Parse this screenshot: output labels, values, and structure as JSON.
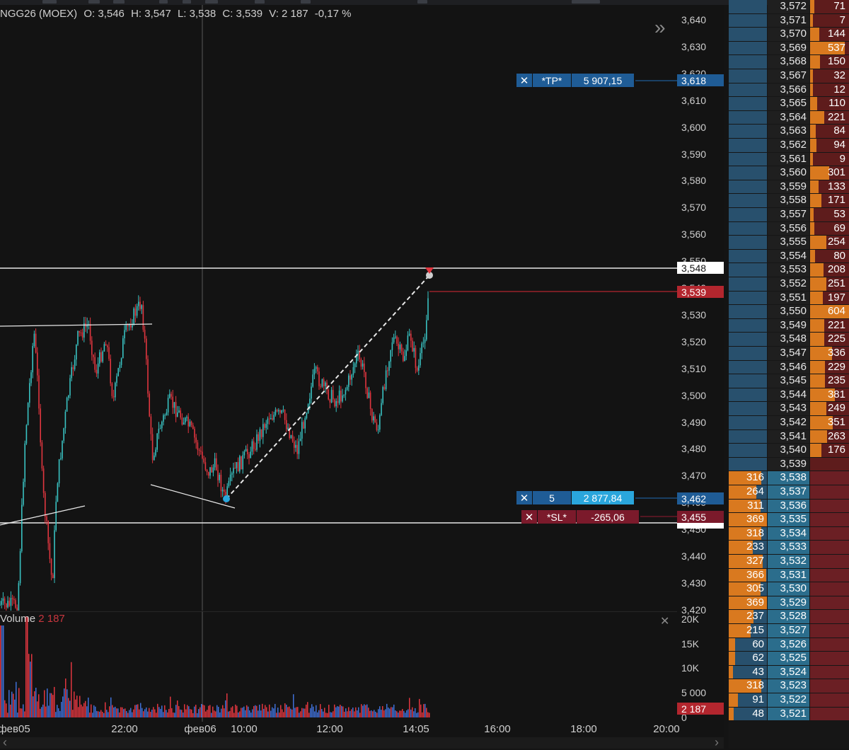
{
  "instrument": {
    "symbol": "NGG26 (MOEX)",
    "open": "O: 3,546",
    "high": "H: 3,547",
    "low": "L: 3,538",
    "close": "C: 3,539",
    "volume": "V: 2 187",
    "change": "-0,17 %"
  },
  "orders": {
    "tp": {
      "close_icon": "✕",
      "label": "*TP*",
      "value": "5 907,15",
      "price": "3,618"
    },
    "position": {
      "close_icon": "✕",
      "qty": "5",
      "value": "2 877,84",
      "price": "3,462"
    },
    "sl": {
      "close_icon": "✕",
      "label": "*SL*",
      "value": "-265,06",
      "price": "3,455"
    }
  },
  "price_axis": {
    "ticks": [
      "3,640",
      "3,630",
      "3,620",
      "3,610",
      "3,600",
      "3,590",
      "3,580",
      "3,570",
      "3,560",
      "3,550",
      "3,540",
      "3,530",
      "3,520",
      "3,510",
      "3,500",
      "3,490",
      "3,480",
      "3,470",
      "3,460",
      "3,450",
      "3,440",
      "3,430",
      "3,420"
    ],
    "level_tag": "3,548",
    "last_tag": "3,539"
  },
  "volume_panel": {
    "label": "Volume",
    "value": "2 187",
    "close_icon": "✕",
    "ticks": [
      "20K",
      "15K",
      "10K",
      "5 000",
      "0"
    ],
    "last_tag": "2 187"
  },
  "time_axis": [
    "фев05",
    "22:00",
    "фев06",
    "10:00",
    "12:00",
    "14:05",
    "16:00",
    "18:00",
    "20:00"
  ],
  "nav_icon": "»",
  "scroll_arrows": {
    "left": "‹",
    "right": "›"
  },
  "colors": {
    "up": "#39c1c1",
    "down": "#e0363f",
    "ask": "#d9791f",
    "bid": "#28506d",
    "tp": "#1f5c96",
    "sl": "#7b1a2b",
    "position": "#2aa6dc"
  },
  "order_book": {
    "asks": [
      {
        "price": "3,572",
        "qty": "71"
      },
      {
        "price": "3,571",
        "qty": "7"
      },
      {
        "price": "3,570",
        "qty": "144"
      },
      {
        "price": "3,569",
        "qty": "537"
      },
      {
        "price": "3,568",
        "qty": "150"
      },
      {
        "price": "3,567",
        "qty": "32"
      },
      {
        "price": "3,566",
        "qty": "12"
      },
      {
        "price": "3,565",
        "qty": "110"
      },
      {
        "price": "3,564",
        "qty": "221"
      },
      {
        "price": "3,563",
        "qty": "84"
      },
      {
        "price": "3,562",
        "qty": "94"
      },
      {
        "price": "3,561",
        "qty": "9"
      },
      {
        "price": "3,560",
        "qty": "301"
      },
      {
        "price": "3,559",
        "qty": "133"
      },
      {
        "price": "3,558",
        "qty": "171"
      },
      {
        "price": "3,557",
        "qty": "53"
      },
      {
        "price": "3,556",
        "qty": "69"
      },
      {
        "price": "3,555",
        "qty": "254"
      },
      {
        "price": "3,554",
        "qty": "80"
      },
      {
        "price": "3,553",
        "qty": "208"
      },
      {
        "price": "3,552",
        "qty": "251"
      },
      {
        "price": "3,551",
        "qty": "197"
      },
      {
        "price": "3,550",
        "qty": "604"
      },
      {
        "price": "3,549",
        "qty": "221"
      },
      {
        "price": "3,548",
        "qty": "225"
      },
      {
        "price": "3,547",
        "qty": "336"
      },
      {
        "price": "3,546",
        "qty": "229"
      },
      {
        "price": "3,545",
        "qty": "235"
      },
      {
        "price": "3,544",
        "qty": "381"
      },
      {
        "price": "3,543",
        "qty": "249"
      },
      {
        "price": "3,542",
        "qty": "351"
      },
      {
        "price": "3,541",
        "qty": "263"
      },
      {
        "price": "3,540",
        "qty": "176"
      }
    ],
    "spread_price": "3,539",
    "bids": [
      {
        "price": "3,538",
        "qty": "316"
      },
      {
        "price": "3,537",
        "qty": "264"
      },
      {
        "price": "3,536",
        "qty": "311"
      },
      {
        "price": "3,535",
        "qty": "369"
      },
      {
        "price": "3,534",
        "qty": "318"
      },
      {
        "price": "3,533",
        "qty": "233"
      },
      {
        "price": "3,532",
        "qty": "327"
      },
      {
        "price": "3,531",
        "qty": "366"
      },
      {
        "price": "3,530",
        "qty": "305"
      },
      {
        "price": "3,529",
        "qty": "369"
      },
      {
        "price": "3,528",
        "qty": "237"
      },
      {
        "price": "3,527",
        "qty": "215"
      },
      {
        "price": "3,526",
        "qty": "60"
      },
      {
        "price": "3,525",
        "qty": "62"
      },
      {
        "price": "3,524",
        "qty": "43"
      },
      {
        "price": "3,523",
        "qty": "318"
      },
      {
        "price": "3,522",
        "qty": "91"
      },
      {
        "price": "3,521",
        "qty": "48"
      }
    ]
  }
}
